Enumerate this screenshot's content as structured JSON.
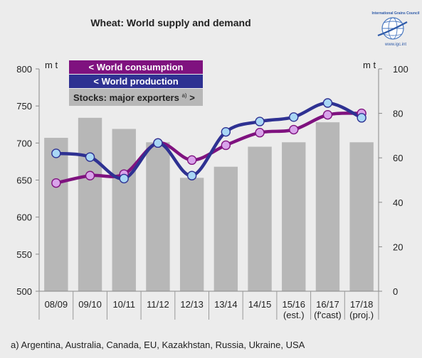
{
  "chart_data": {
    "type": "bar",
    "title": "Wheat: World supply and demand",
    "logo_text": {
      "org": "International Grains Council",
      "url": "www.igc.int"
    },
    "left_axis_unit": "m t",
    "right_axis_unit": "m t",
    "categories": [
      [
        "08/09"
      ],
      [
        "09/10"
      ],
      [
        "10/11"
      ],
      [
        "11/12"
      ],
      [
        "12/13"
      ],
      [
        "13/14"
      ],
      [
        "14/15"
      ],
      [
        "15/16",
        "(est.)"
      ],
      [
        "16/17",
        "(f'cast)"
      ],
      [
        "17/18",
        "(proj.)"
      ]
    ],
    "left_axis": {
      "min": 500,
      "max": 800,
      "ticks": [
        500,
        550,
        600,
        650,
        700,
        750,
        800
      ]
    },
    "right_axis": {
      "min": 0,
      "max": 100,
      "ticks": [
        0,
        20,
        40,
        60,
        80,
        100
      ]
    },
    "series": [
      {
        "name": "Stocks: major exporters",
        "name_sup": "a)",
        "name_suffix": " >",
        "type": "bar",
        "axis": "right",
        "color": "#b7b7b7",
        "values": [
          69,
          78,
          73,
          67,
          51,
          56,
          65,
          67,
          76,
          67
        ]
      },
      {
        "name": "< World consumption",
        "type": "line",
        "axis": "left",
        "color": "#7f127f",
        "marker_color": "#d9a3ea",
        "values": [
          646,
          656,
          658,
          700,
          677,
          697,
          714,
          718,
          738,
          740
        ]
      },
      {
        "name": "< World production",
        "type": "line",
        "axis": "left",
        "color": "#2e3192",
        "marker_color": "#a9d7f5",
        "values": [
          686,
          681,
          652,
          700,
          656,
          715,
          729,
          735,
          754,
          734
        ]
      }
    ],
    "footnote": "a) Argentina, Australia, Canada, EU, Kazakhstan, Russia, Ukraine, USA"
  }
}
